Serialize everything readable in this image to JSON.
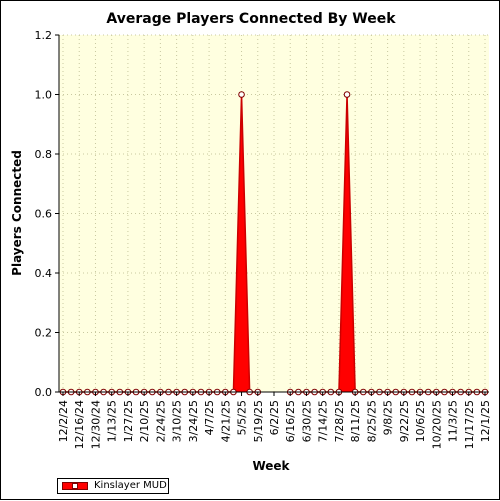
{
  "chart_data": {
    "type": "area",
    "title": "Average Players Connected By Week",
    "xlabel": "Week",
    "ylabel": "Players Connected",
    "ylim": [
      0,
      1.2
    ],
    "yticks": [
      "0.0",
      "0.2",
      "0.4",
      "0.6",
      "0.8",
      "1.0",
      "1.2"
    ],
    "xtick_labels": [
      "12/2/24",
      "12/16/24",
      "12/30/24",
      "1/13/25",
      "1/27/25",
      "2/10/25",
      "2/24/25",
      "3/10/25",
      "3/24/25",
      "4/7/25",
      "4/21/25",
      "5/5/25",
      "5/19/25",
      "6/2/25",
      "6/16/25",
      "6/30/25",
      "7/14/25",
      "7/28/25",
      "8/11/25",
      "8/25/25",
      "9/8/25",
      "9/22/25",
      "10/6/25",
      "10/20/25",
      "11/3/25",
      "11/17/25",
      "12/1/25"
    ],
    "grid": true,
    "legend_position": "bottom-left",
    "colors": {
      "fill": "#ff0000",
      "line": "#cc0000",
      "marker_edge": "#800000",
      "plot_bg": "#ffffe0"
    },
    "series": [
      {
        "name": "Kinslayer MUD",
        "x": [
          "12/2/24",
          "12/9/24",
          "12/16/24",
          "12/23/24",
          "12/30/24",
          "1/6/25",
          "1/13/25",
          "1/20/25",
          "1/27/25",
          "2/3/25",
          "2/10/25",
          "2/17/25",
          "2/24/25",
          "3/3/25",
          "3/10/25",
          "3/17/25",
          "3/24/25",
          "3/31/25",
          "4/7/25",
          "4/14/25",
          "4/21/25",
          "4/28/25",
          "5/5/25",
          "5/12/25",
          "5/19/25",
          "5/26/25",
          "6/2/25",
          "6/9/25",
          "6/16/25",
          "6/23/25",
          "6/30/25",
          "7/7/25",
          "7/14/25",
          "7/21/25",
          "7/28/25",
          "8/4/25",
          "8/11/25",
          "8/18/25",
          "8/25/25",
          "9/1/25",
          "9/8/25",
          "9/15/25",
          "9/22/25",
          "9/29/25",
          "10/6/25",
          "10/13/25",
          "10/20/25",
          "10/27/25",
          "11/3/25",
          "11/10/25",
          "11/17/25",
          "11/24/25",
          "12/1/25"
        ],
        "values": [
          0,
          0,
          0,
          0,
          0,
          0,
          0,
          0,
          0,
          0,
          0,
          0,
          0,
          0,
          0,
          0,
          0,
          0,
          0,
          0,
          0,
          0,
          1,
          0,
          0,
          null,
          null,
          null,
          0,
          0,
          0,
          0,
          0,
          0,
          0,
          1,
          0,
          0,
          0,
          0,
          0,
          0,
          0,
          0,
          0,
          0,
          0,
          0,
          0,
          0,
          0,
          0,
          0
        ]
      }
    ]
  }
}
